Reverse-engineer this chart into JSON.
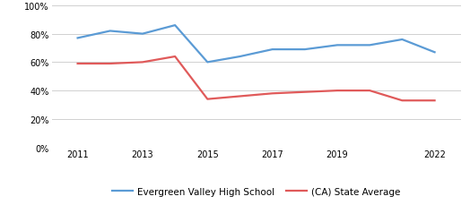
{
  "school_years": [
    2011,
    2012,
    2013,
    2014,
    2015,
    2016,
    2017,
    2018,
    2019,
    2020,
    2021,
    2022
  ],
  "school_values": [
    0.77,
    0.82,
    0.8,
    0.86,
    0.6,
    0.64,
    0.69,
    0.69,
    0.72,
    0.72,
    0.76,
    0.67
  ],
  "state_years": [
    2011,
    2012,
    2013,
    2014,
    2015,
    2016,
    2017,
    2018,
    2019,
    2020,
    2021,
    2022
  ],
  "state_values": [
    0.59,
    0.59,
    0.6,
    0.64,
    0.34,
    0.36,
    0.38,
    0.39,
    0.4,
    0.4,
    0.33,
    0.33
  ],
  "school_color": "#5b9bd5",
  "state_color": "#e05a5a",
  "school_label": "Evergreen Valley High School",
  "state_label": "(CA) State Average",
  "ylim": [
    0,
    1.0
  ],
  "yticks": [
    0.0,
    0.2,
    0.4,
    0.6,
    0.8,
    1.0
  ],
  "ytick_labels": [
    "0%",
    "20%",
    "40%",
    "60%",
    "80%",
    "100%"
  ],
  "xticks": [
    2011,
    2013,
    2015,
    2017,
    2019,
    2022
  ],
  "background_color": "#ffffff",
  "grid_color": "#d0d0d0",
  "line_width": 1.6
}
